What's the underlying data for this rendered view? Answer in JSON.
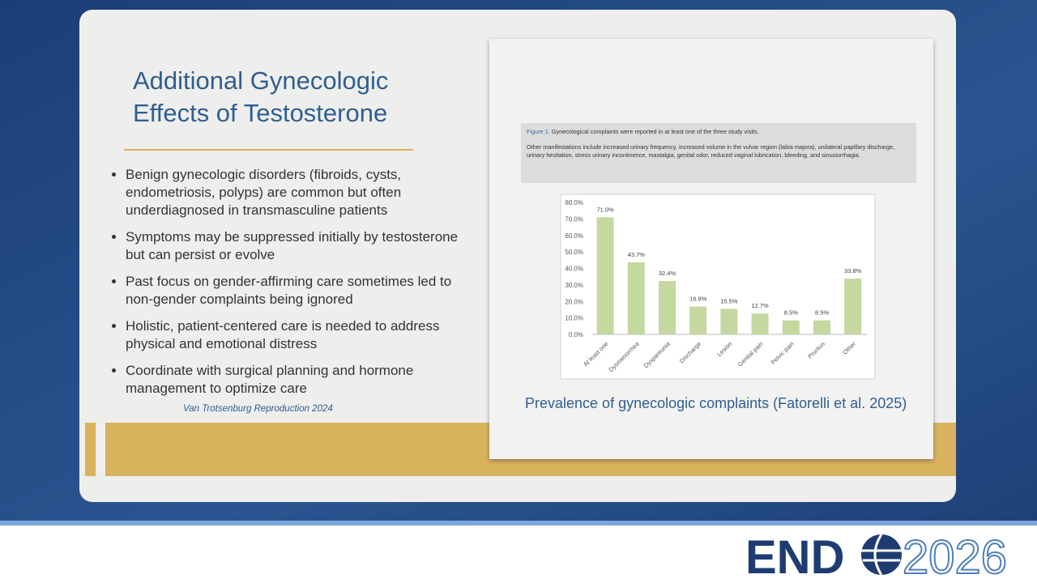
{
  "slide": {
    "title_lines": [
      "Additional Gynecologic",
      "Effects of Testosterone"
    ],
    "bullets": [
      "Benign gynecologic disorders (fibroids, cysts, endometriosis, polyps) are common but often underdiagnosed in transmasculine patients",
      "Symptoms may be suppressed initially by testosterone but can persist or evolve",
      "Past focus on gender-affirming care sometimes led to non-gender complaints being ignored",
      "Holistic, patient-centered care is needed to address physical and emotional distress",
      "Coordinate with surgical planning and hormone management to optimize care"
    ],
    "citation": "Van Trotsenburg Reproduction 2024",
    "figure_label": "Figure 1.",
    "figure_caption": "Gynecological complaints were reported in at least one of the three study visits.",
    "figure_note": "Other manifestations include increased urinary frequency, increased volume in the vulvar region (labia majora), unilateral papillary discharge, urinary hesitation, stress urinary incontinence, mastalgia, genital odor, reduced vaginal lubrication, bleeding, and sinusiorrhagia.",
    "figure_title": "Prevalence of gynecologic complaints (Fatorelli et al. 2025)",
    "logo_left": "END",
    "logo_right": "2026"
  },
  "chart_data": {
    "type": "bar",
    "categories": [
      "At least one",
      "Dysmenorrhea",
      "Dyspareunia",
      "Discharge",
      "Lesion",
      "Genital pain",
      "Pelvic pain",
      "Pruritus",
      "Other"
    ],
    "values": [
      71.0,
      43.7,
      32.4,
      16.9,
      15.5,
      12.7,
      8.5,
      8.5,
      33.8
    ],
    "value_labels": [
      "71.0%",
      "43.7%",
      "32.4%",
      "16.9%",
      "15.5%",
      "12.7%",
      "8.5%",
      "8.5%",
      "33.8%"
    ],
    "color": "#c4d8a0",
    "ylim": [
      0,
      80
    ],
    "yticks": [
      {
        "value": 0,
        "label": "0.0%"
      },
      {
        "value": 10,
        "label": "10.0%"
      },
      {
        "value": 20,
        "label": "20.0%"
      },
      {
        "value": 30,
        "label": "30.0%"
      },
      {
        "value": 40,
        "label": "40.0%"
      },
      {
        "value": 50,
        "label": "50.0%"
      },
      {
        "value": 60,
        "label": "60.0%"
      },
      {
        "value": 70,
        "label": "70.0%"
      },
      {
        "value": 80,
        "label": "80.0%"
      }
    ],
    "grid": false
  }
}
